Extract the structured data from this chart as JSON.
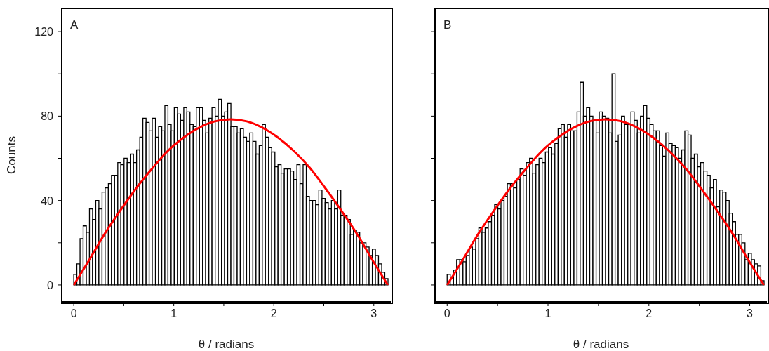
{
  "chart_data": [
    {
      "type": "histogram",
      "ylabel": "Counts",
      "xlabel": "θ / radians",
      "annotations": [
        "A"
      ],
      "bins": [
        0,
        0.031,
        0.063,
        0.094,
        0.126,
        0.157,
        0.188,
        0.22,
        0.251,
        0.283,
        0.314,
        0.346,
        0.377,
        0.408,
        0.44,
        0.471,
        0.503,
        0.534,
        0.565,
        0.597,
        0.628,
        0.66,
        0.691,
        0.723,
        0.754,
        0.785,
        0.817,
        0.848,
        0.88,
        0.911,
        0.942,
        0.974,
        1.005,
        1.037,
        1.068,
        1.1,
        1.131,
        1.162,
        1.194,
        1.225,
        1.257,
        1.288,
        1.319,
        1.351,
        1.382,
        1.414,
        1.445,
        1.477,
        1.508,
        1.539,
        1.571,
        1.602,
        1.634,
        1.665,
        1.696,
        1.728,
        1.759,
        1.791,
        1.822,
        1.854,
        1.885,
        1.916,
        1.948,
        1.979,
        2.011,
        2.042,
        2.073,
        2.105,
        2.136,
        2.168,
        2.199,
        2.231,
        2.262,
        2.293,
        2.325,
        2.356,
        2.388,
        2.419,
        2.45,
        2.482,
        2.513,
        2.545,
        2.576,
        2.608,
        2.639,
        2.67,
        2.702,
        2.733,
        2.765,
        2.796,
        2.827,
        2.859,
        2.89,
        2.922,
        2.953,
        2.985,
        3.016,
        3.047,
        3.079,
        3.11,
        3.142
      ],
      "series": [
        {
          "type": "histogram",
          "color": "#ffffff",
          "values": [
            5,
            10,
            22,
            28,
            25,
            36,
            31,
            40,
            36,
            44,
            46,
            48,
            52,
            52,
            58,
            57,
            60,
            58,
            62,
            58,
            64,
            70,
            79,
            77,
            73,
            79,
            70,
            75,
            73,
            85,
            76,
            73,
            84,
            81,
            78,
            84,
            82,
            76,
            75,
            84,
            84,
            78,
            72,
            79,
            84,
            80,
            88,
            80,
            82,
            86,
            75,
            75,
            72,
            74,
            70,
            68,
            72,
            68,
            62,
            66,
            76,
            70,
            65,
            63,
            56,
            57,
            53,
            55,
            55,
            54,
            50,
            57,
            48,
            57,
            42,
            40,
            40,
            38,
            45,
            41,
            39,
            36,
            40,
            36,
            45,
            33,
            33,
            31,
            24,
            26,
            25,
            20,
            20,
            18,
            14,
            17,
            14,
            10,
            6,
            3
          ]
        },
        {
          "type": "line",
          "color": "#ff0000",
          "x": [
            0,
            0.16,
            0.31,
            0.47,
            0.63,
            0.79,
            0.94,
            1.1,
            1.26,
            1.41,
            1.57,
            1.73,
            1.88,
            2.04,
            2.2,
            2.36,
            2.51,
            2.67,
            2.83,
            2.98,
            3.14
          ],
          "values": [
            0,
            12.3,
            24.3,
            35.6,
            46.2,
            55.5,
            63.5,
            69.9,
            74.7,
            77.5,
            78.5,
            77.5,
            74.7,
            69.9,
            63.5,
            55.5,
            46.2,
            35.6,
            24.3,
            12.3,
            0
          ]
        }
      ],
      "xlim": [
        -0.12,
        3.17
      ],
      "xticks": [
        0,
        {
          "value": 0.5,
          "label": null
        },
        1,
        {
          "value": 1.5,
          "label": null
        },
        2,
        {
          "value": 2.5,
          "label": null
        },
        3
      ],
      "ylim": [
        -8,
        131
      ],
      "yticks": [
        0,
        {
          "value": 20,
          "label": null
        },
        40,
        {
          "value": 60,
          "label": null
        },
        80,
        {
          "value": 100,
          "label": null
        },
        120
      ],
      "grid": false,
      "legend": false
    },
    {
      "type": "histogram",
      "xlabel": "θ / radians",
      "annotations": [
        "B"
      ],
      "tick_labels": "x",
      "bins": [
        0,
        0.031,
        0.063,
        0.094,
        0.126,
        0.157,
        0.188,
        0.22,
        0.251,
        0.283,
        0.314,
        0.346,
        0.377,
        0.408,
        0.44,
        0.471,
        0.503,
        0.534,
        0.565,
        0.597,
        0.628,
        0.66,
        0.691,
        0.723,
        0.754,
        0.785,
        0.817,
        0.848,
        0.88,
        0.911,
        0.942,
        0.974,
        1.005,
        1.037,
        1.068,
        1.1,
        1.131,
        1.162,
        1.194,
        1.225,
        1.257,
        1.288,
        1.319,
        1.351,
        1.382,
        1.414,
        1.445,
        1.477,
        1.508,
        1.539,
        1.571,
        1.602,
        1.634,
        1.665,
        1.696,
        1.728,
        1.759,
        1.791,
        1.822,
        1.854,
        1.885,
        1.916,
        1.948,
        1.979,
        2.011,
        2.042,
        2.073,
        2.105,
        2.136,
        2.168,
        2.199,
        2.231,
        2.262,
        2.293,
        2.325,
        2.356,
        2.388,
        2.419,
        2.45,
        2.482,
        2.513,
        2.545,
        2.576,
        2.608,
        2.639,
        2.67,
        2.702,
        2.733,
        2.765,
        2.796,
        2.827,
        2.859,
        2.89,
        2.922,
        2.953,
        2.985,
        3.016,
        3.047,
        3.079,
        3.11,
        3.142
      ],
      "series": [
        {
          "type": "histogram",
          "color": "#ffffff",
          "values": [
            5,
            3,
            7,
            12,
            12,
            11,
            14,
            18,
            17,
            22,
            27,
            25,
            27,
            30,
            33,
            38,
            36,
            40,
            42,
            48,
            48,
            46,
            50,
            55,
            52,
            58,
            60,
            53,
            57,
            60,
            58,
            63,
            65,
            62,
            67,
            74,
            76,
            70,
            76,
            73,
            73,
            82,
            96,
            80,
            84,
            80,
            78,
            72,
            82,
            80,
            79,
            72,
            100,
            68,
            71,
            80,
            76,
            76,
            82,
            78,
            72,
            80,
            85,
            79,
            76,
            73,
            73,
            66,
            61,
            72,
            67,
            66,
            65,
            60,
            64,
            73,
            71,
            60,
            62,
            56,
            58,
            54,
            52,
            46,
            50,
            37,
            45,
            44,
            40,
            34,
            30,
            24,
            24,
            20,
            12,
            15,
            12,
            10,
            9,
            2
          ]
        },
        {
          "type": "line",
          "color": "#ff0000",
          "x": [
            0,
            0.16,
            0.31,
            0.47,
            0.63,
            0.79,
            0.94,
            1.1,
            1.26,
            1.41,
            1.57,
            1.73,
            1.88,
            2.04,
            2.2,
            2.36,
            2.51,
            2.67,
            2.83,
            2.98,
            3.14
          ],
          "values": [
            0,
            12.3,
            24.3,
            35.6,
            46.2,
            55.5,
            63.5,
            69.9,
            74.7,
            77.5,
            78.5,
            77.5,
            74.7,
            69.9,
            63.5,
            55.5,
            46.2,
            35.6,
            24.3,
            12.3,
            0
          ]
        }
      ],
      "xlim": [
        -0.12,
        3.17
      ],
      "xticks": [
        0,
        {
          "value": 0.5,
          "label": null
        },
        1,
        {
          "value": 1.5,
          "label": null
        },
        2,
        {
          "value": 2.5,
          "label": null
        },
        3
      ],
      "ylim": [
        -8,
        131
      ],
      "yticks": [
        0,
        {
          "value": 20,
          "label": null
        },
        40,
        {
          "value": 60,
          "label": null
        },
        80,
        {
          "value": 100,
          "label": null
        },
        120
      ],
      "grid": false,
      "legend": false
    }
  ]
}
